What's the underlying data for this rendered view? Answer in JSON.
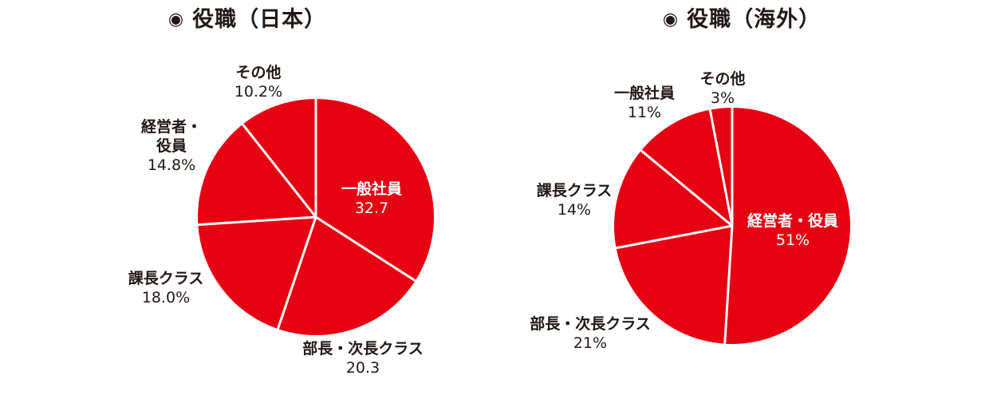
{
  "charts": [
    {
      "title": "役職（日本）",
      "title_marker": "◉",
      "slice_color": "#e60012",
      "separator_color": "#ffffff",
      "chart_data": {
        "type": "pie",
        "title": "役職（日本）",
        "slices": [
          {
            "label": "一般社員",
            "value": 32.7,
            "value_text": "32.7",
            "label_inside": true
          },
          {
            "label": "部長・次長クラス",
            "value": 20.3,
            "value_text": "20.3",
            "label_inside": false
          },
          {
            "label": "課長クラス",
            "value": 18.0,
            "value_text": "18.0%",
            "label_inside": false
          },
          {
            "label": "経営者・\n役員",
            "value": 14.8,
            "value_text": "14.8%",
            "label_inside": false
          },
          {
            "label": "その他",
            "value": 10.2,
            "value_text": "10.2%",
            "label_inside": false
          }
        ]
      }
    },
    {
      "title": "役職（海外）",
      "title_marker": "◉",
      "slice_color": "#e60012",
      "separator_color": "#ffffff",
      "chart_data": {
        "type": "pie",
        "title": "役職（海外）",
        "slices": [
          {
            "label": "経営者・役員",
            "value": 51,
            "value_text": "51%",
            "label_inside": true
          },
          {
            "label": "部長・次長クラス",
            "value": 21,
            "value_text": "21%",
            "label_inside": false
          },
          {
            "label": "課長クラス",
            "value": 14,
            "value_text": "14%",
            "label_inside": false
          },
          {
            "label": "一般社員",
            "value": 11,
            "value_text": "11%",
            "label_inside": false
          },
          {
            "label": "その他",
            "value": 3,
            "value_text": "3%",
            "label_inside": false
          }
        ]
      }
    }
  ]
}
